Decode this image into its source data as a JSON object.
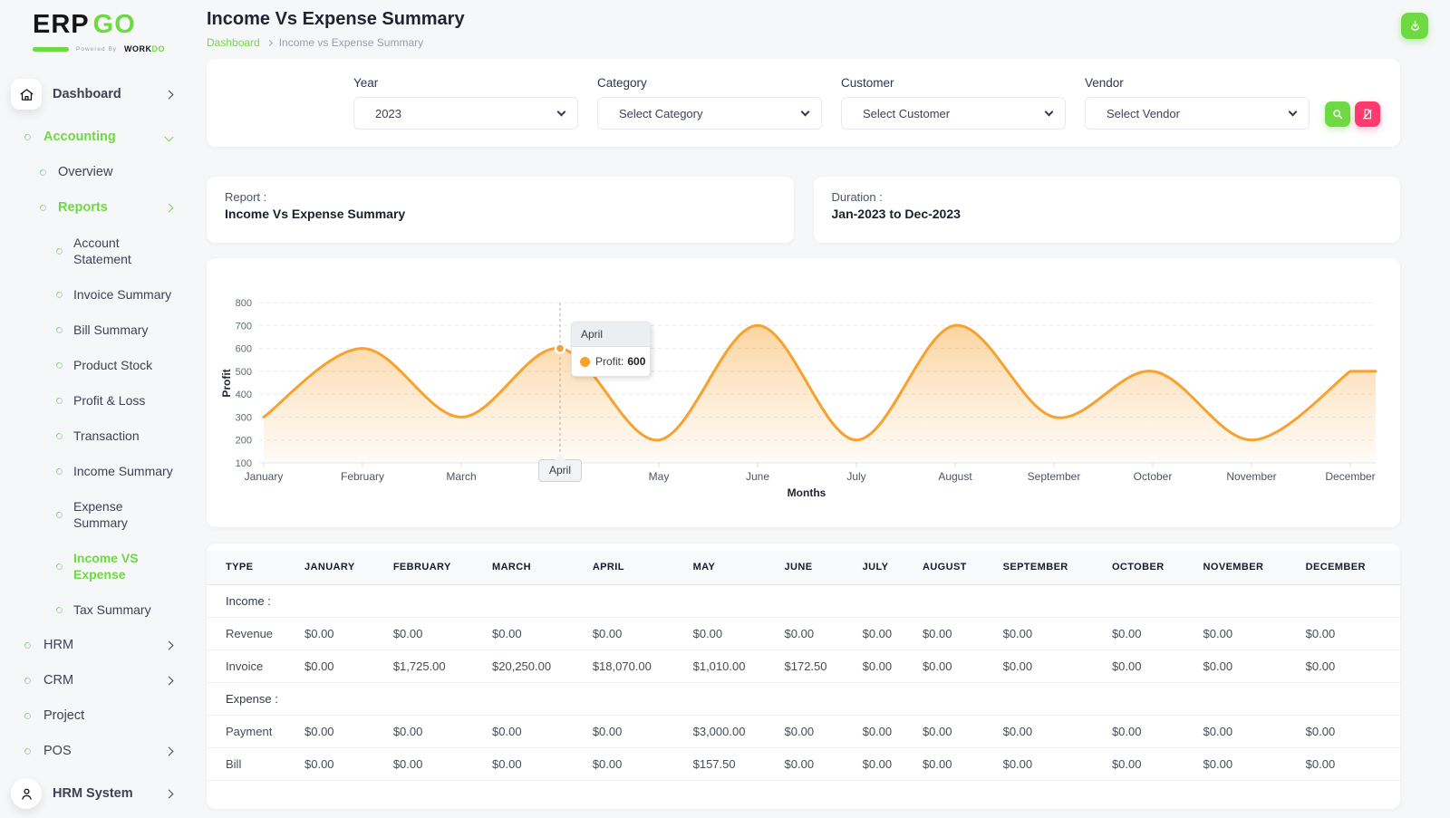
{
  "brand": {
    "erp": "ERP",
    "go": "GO",
    "powered_prefix": "Powered By",
    "powered_work": "WORK",
    "powered_do": "DO"
  },
  "header": {
    "title": "Income Vs Expense Summary",
    "breadcrumb_home": "Dashboard",
    "breadcrumb_current": "Income vs Expense Summary"
  },
  "sidebar": {
    "dashboard": "Dashboard",
    "accounting": "Accounting",
    "overview": "Overview",
    "reports": "Reports",
    "report_items": [
      "Account Statement",
      "Invoice Summary",
      "Bill Summary",
      "Product Stock",
      "Profit & Loss",
      "Transaction",
      "Income Summary",
      "Expense Summary",
      "Income VS Expense",
      "Tax Summary"
    ],
    "active_item": "Income VS Expense",
    "hrm": "HRM",
    "crm": "CRM",
    "project": "Project",
    "pos": "POS",
    "hrm_system": "HRM System"
  },
  "filters": {
    "year": {
      "label": "Year",
      "value": "2023"
    },
    "category": {
      "label": "Category",
      "value": "Select Category"
    },
    "customer": {
      "label": "Customer",
      "value": "Select Customer"
    },
    "vendor": {
      "label": "Vendor",
      "value": "Select Vendor"
    }
  },
  "info_cards": {
    "report": {
      "label": "Report :",
      "value": "Income Vs Expense Summary"
    },
    "duration": {
      "label": "Duration :",
      "value": "Jan-2023 to Dec-2023"
    }
  },
  "chart_data": {
    "type": "area",
    "categories": [
      "January",
      "February",
      "March",
      "April",
      "May",
      "June",
      "July",
      "August",
      "September",
      "October",
      "November",
      "December"
    ],
    "series": [
      {
        "name": "Profit",
        "values": [
          300,
          600,
          300,
          600,
          200,
          700,
          200,
          700,
          300,
          500,
          200,
          500
        ]
      }
    ],
    "xlabel": "Months",
    "ylabel": "Profit",
    "ylim": [
      100,
      800
    ],
    "ytick_step": 100,
    "grid": "dashed-horizontal",
    "legend": "none",
    "highlight_index": 3,
    "tooltip": {
      "month": "April",
      "label": "Profit:",
      "value": "600"
    }
  },
  "table": {
    "columns": [
      "TYPE",
      "JANUARY",
      "FEBRUARY",
      "MARCH",
      "APRIL",
      "MAY",
      "JUNE",
      "JULY",
      "AUGUST",
      "SEPTEMBER",
      "OCTOBER",
      "NOVEMBER",
      "DECEMBER"
    ],
    "sections": [
      {
        "name": "Income :",
        "rows": [
          {
            "type": "Revenue",
            "values": [
              "$0.00",
              "$0.00",
              "$0.00",
              "$0.00",
              "$0.00",
              "$0.00",
              "$0.00",
              "$0.00",
              "$0.00",
              "$0.00",
              "$0.00",
              "$0.00"
            ]
          },
          {
            "type": "Invoice",
            "values": [
              "$0.00",
              "$1,725.00",
              "$20,250.00",
              "$18,070.00",
              "$1,010.00",
              "$172.50",
              "$0.00",
              "$0.00",
              "$0.00",
              "$0.00",
              "$0.00",
              "$0.00"
            ]
          }
        ]
      },
      {
        "name": "Expense :",
        "rows": [
          {
            "type": "Payment",
            "values": [
              "$0.00",
              "$0.00",
              "$0.00",
              "$0.00",
              "$3,000.00",
              "$0.00",
              "$0.00",
              "$0.00",
              "$0.00",
              "$0.00",
              "$0.00",
              "$0.00"
            ]
          },
          {
            "type": "Bill",
            "values": [
              "$0.00",
              "$0.00",
              "$0.00",
              "$0.00",
              "$157.50",
              "$0.00",
              "$0.00",
              "$0.00",
              "$0.00",
              "$0.00",
              "$0.00",
              "$0.00"
            ]
          }
        ]
      }
    ]
  },
  "colors": {
    "accent": "#6fd943",
    "danger": "#ff3a6e",
    "chart_line": "#f7a12f",
    "text_dark": "#1f2430"
  }
}
